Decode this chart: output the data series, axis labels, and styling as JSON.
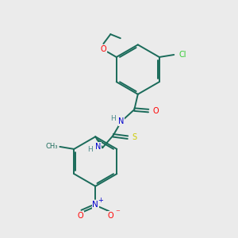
{
  "background_color": "#ebebeb",
  "bond_color": "#1a6b5a",
  "atom_colors": {
    "O": "#ff0000",
    "N": "#0000cc",
    "S": "#cccc00",
    "Cl": "#33cc33",
    "H": "#4a8a8a",
    "C": "#1a6b5a"
  },
  "figsize": [
    3.0,
    3.0
  ],
  "dpi": 100
}
